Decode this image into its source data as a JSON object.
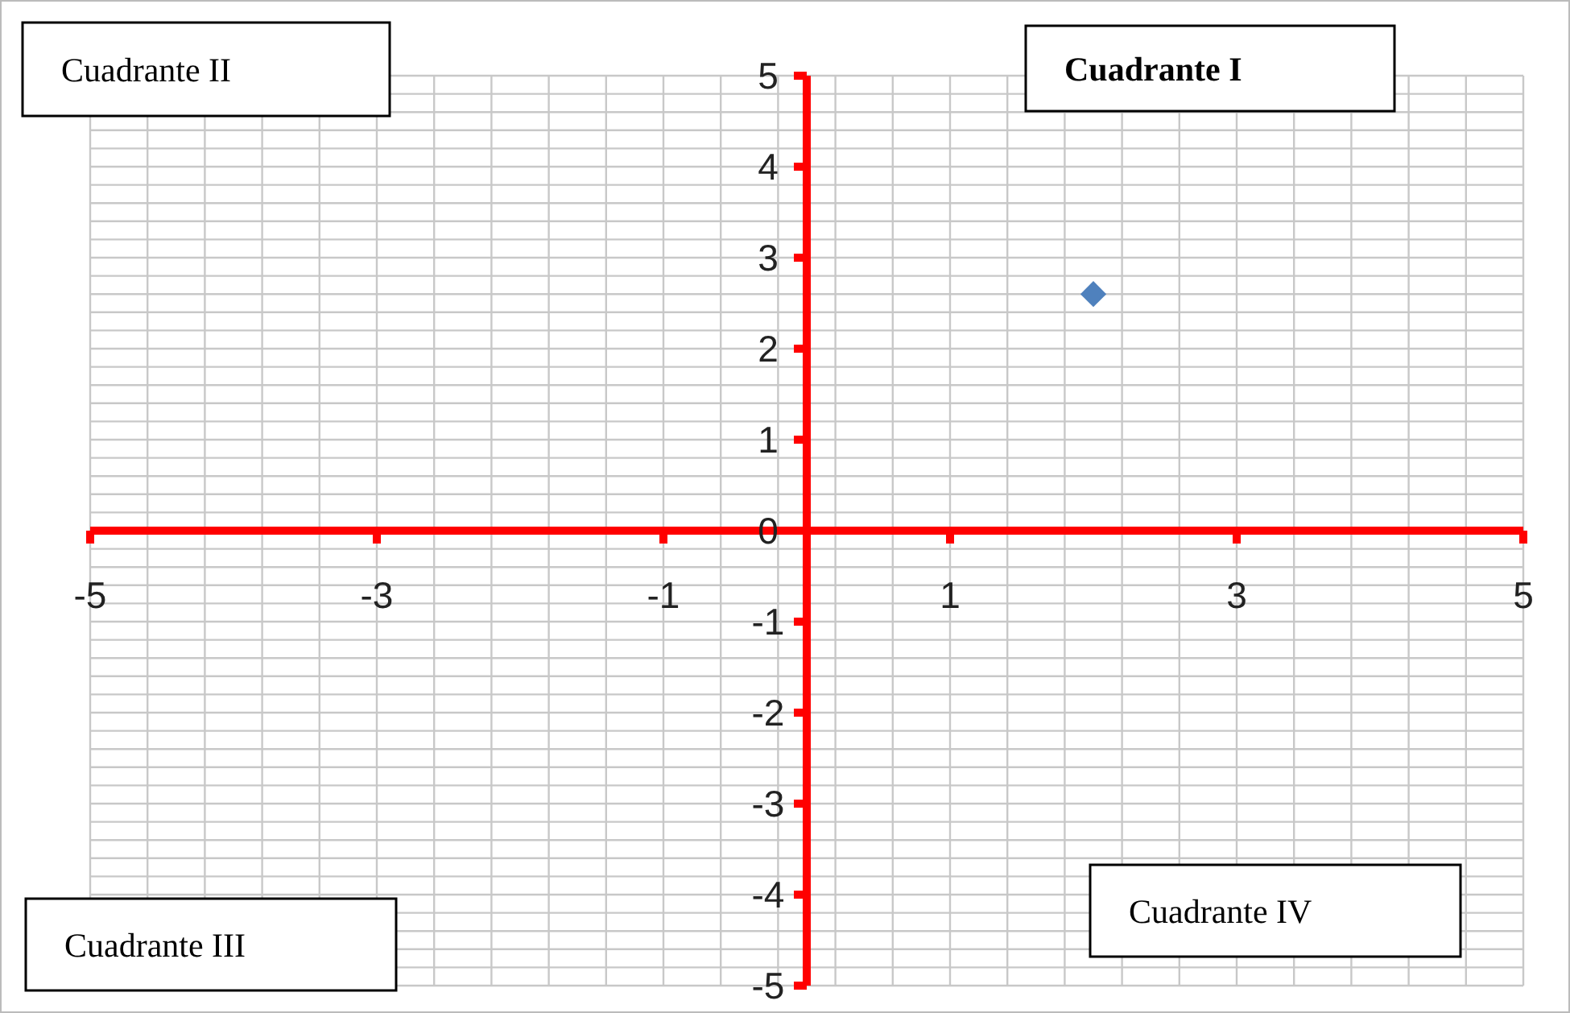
{
  "chart_data": {
    "type": "scatter",
    "x": [
      2
    ],
    "values": [
      2.6
    ],
    "color": "#4f81bd",
    "marker": "diamond",
    "xlim": [
      -5,
      5
    ],
    "ylim": [
      -5,
      5
    ],
    "xticks": [
      -5,
      -3,
      -1,
      1,
      3,
      5
    ],
    "yticks": [
      -5,
      -4,
      -3,
      -2,
      -1,
      0,
      1,
      2,
      3,
      4,
      5
    ],
    "grid": true,
    "annotations": [
      "Cuadrante II",
      "Cuadrante I",
      "Cuadrante III",
      "Cuadrante IV"
    ]
  }
}
